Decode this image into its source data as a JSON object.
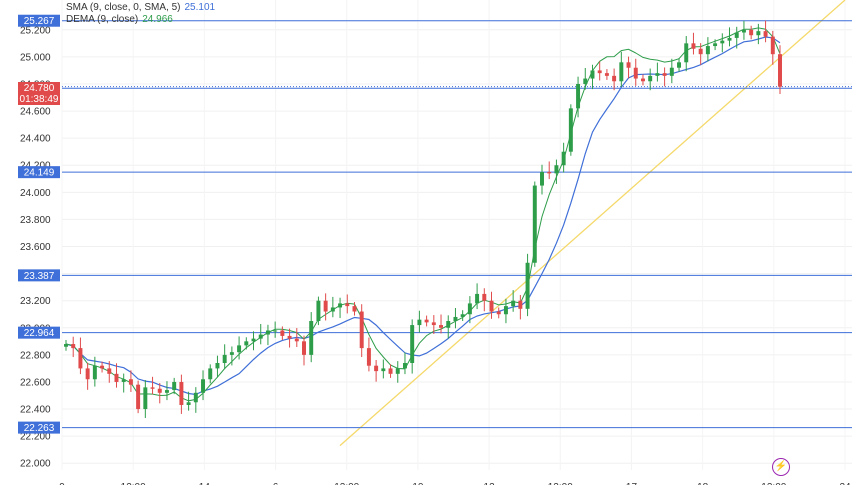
{
  "legend": {
    "sma": {
      "label": "SMA (9, close, 0, SMA, 5)",
      "value": "25.101",
      "color": "#3f6fd8"
    },
    "dema": {
      "label": "DEMA (9, close)",
      "value": "24.966",
      "color": "#2e9d4a"
    }
  },
  "current_price": {
    "price": "24.780",
    "countdown": "01:38:49",
    "color": "#e04a4a"
  },
  "icons": {
    "alert": "lightning-icon"
  },
  "colors": {
    "up": "#2e9d4a",
    "down": "#e04a4a",
    "level": "#3f6fd8",
    "trend": "#f5d96b"
  },
  "chart_data": {
    "type": "candlestick",
    "ylim": [
      21.95,
      25.42
    ],
    "y_ticks": [
      "22.000",
      "22.200",
      "22.400",
      "22.600",
      "22.800",
      "23.000",
      "23.200",
      "23.400",
      "23.600",
      "23.800",
      "24.000",
      "24.200",
      "24.400",
      "24.600",
      "24.800",
      "25.000",
      "25.200"
    ],
    "horizontal_levels": [
      {
        "value": 25.267,
        "label": "25.267"
      },
      {
        "value": 24.768,
        "label": "24.768"
      },
      {
        "value": 24.149,
        "label": "24.149"
      },
      {
        "value": 23.387,
        "label": "23.387"
      },
      {
        "value": 22.964,
        "label": "22.964"
      },
      {
        "value": 22.263,
        "label": "22.263"
      }
    ],
    "trendline": {
      "from": {
        "x": 0.355,
        "y": 22.13
      },
      "to": {
        "x": 1.0,
        "y": 25.42
      }
    },
    "x_ticks": [
      "9",
      "12:00",
      "14",
      "6",
      "12:00",
      "10",
      "12",
      "12:00",
      "17",
      "18",
      "12:00",
      "24"
    ],
    "series_close": [
      22.88,
      22.85,
      22.7,
      22.62,
      22.72,
      22.7,
      22.66,
      22.6,
      22.62,
      22.58,
      22.4,
      22.56,
      22.55,
      22.52,
      22.54,
      22.6,
      22.43,
      22.45,
      22.52,
      22.62,
      22.7,
      22.74,
      22.8,
      22.82,
      22.87,
      22.9,
      22.92,
      22.95,
      22.98,
      22.98,
      22.94,
      22.92,
      22.9,
      22.8,
      23.05,
      23.2,
      23.12,
      23.15,
      23.18,
      23.16,
      23.12,
      22.85,
      22.72,
      22.68,
      22.7,
      22.66,
      22.7,
      22.74,
      23.02,
      23.06,
      23.04,
      23.02,
      23.0,
      23.05,
      23.08,
      23.1,
      23.18,
      23.25,
      23.2,
      23.12,
      23.1,
      23.16,
      23.2,
      23.14,
      23.48,
      24.05,
      24.15,
      24.14,
      24.2,
      24.3,
      24.62,
      24.8,
      24.84,
      24.9,
      24.88,
      24.86,
      24.82,
      24.96,
      24.92,
      24.84,
      24.82,
      24.86,
      24.88,
      24.86,
      24.92,
      24.96,
      25.1,
      25.06,
      25.02,
      25.08,
      25.1,
      25.12,
      25.14,
      25.18,
      25.2,
      25.16,
      25.19,
      25.15,
      25.02,
      24.78
    ]
  }
}
